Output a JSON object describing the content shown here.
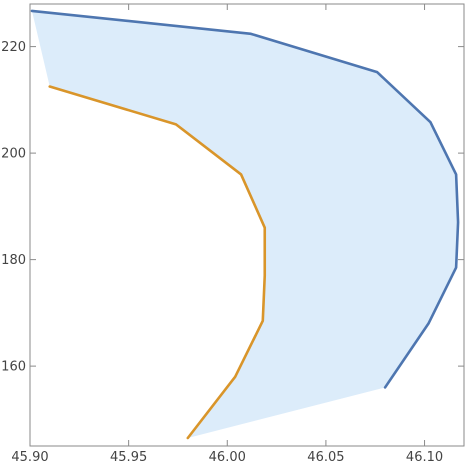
{
  "chart_data": {
    "type": "area",
    "title": "",
    "xlabel": "",
    "ylabel": "",
    "xlim": [
      45.9,
      46.12
    ],
    "ylim": [
      145,
      228
    ],
    "grid": false,
    "x_ticks": [
      45.9,
      45.95,
      46.0,
      46.05,
      46.1
    ],
    "x_tick_labels": [
      "45.90",
      "45.95",
      "46.00",
      "46.05",
      "46.10"
    ],
    "y_ticks": [
      160,
      180,
      200,
      220
    ],
    "y_tick_labels": [
      "160",
      "180",
      "200",
      "220"
    ],
    "fill_color": "#dcecfa",
    "series": [
      {
        "color": "#4e76b0",
        "points": [
          [
            45.901,
            226.7
          ],
          [
            46.012,
            222.4
          ],
          [
            46.076,
            215.2
          ],
          [
            46.103,
            205.8
          ],
          [
            46.116,
            196.0
          ],
          [
            46.117,
            187.0
          ],
          [
            46.116,
            178.5
          ],
          [
            46.102,
            168.0
          ],
          [
            46.08,
            156.0
          ]
        ]
      },
      {
        "color": "#d9952a",
        "points": [
          [
            45.91,
            212.5
          ],
          [
            45.974,
            205.4
          ],
          [
            46.007,
            196.0
          ],
          [
            46.019,
            186.0
          ],
          [
            46.019,
            177.0
          ],
          [
            46.018,
            168.5
          ],
          [
            46.004,
            158.0
          ],
          [
            45.98,
            146.5
          ]
        ]
      }
    ]
  }
}
